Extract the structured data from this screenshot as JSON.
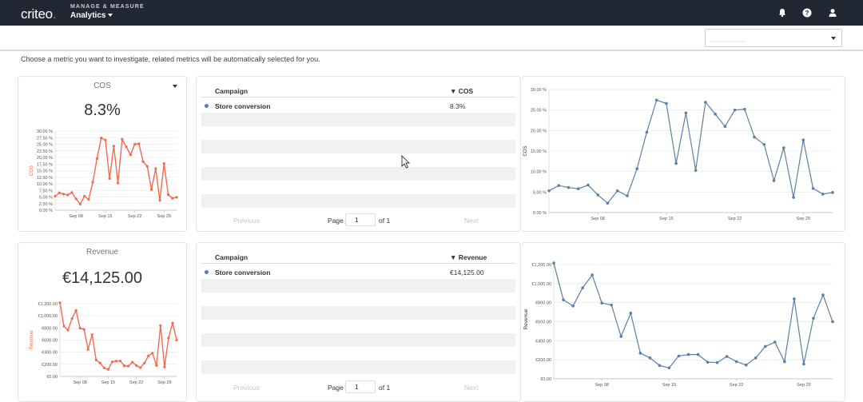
{
  "header": {
    "logo": "criteo",
    "product_sub": "MANAGE & MEASURE",
    "product_main": "Analytics",
    "icons": [
      "bell-icon",
      "help-icon",
      "user-icon"
    ]
  },
  "intro_text": "Choose a metric you want to investigate, related metrics will be automatically selected for you.",
  "colors": {
    "topbar": "#222833",
    "spark": "#f26b4f",
    "line": "#5b7fa5",
    "accent": "#f36c21"
  },
  "rows": [
    {
      "metric": {
        "name": "COS",
        "value": "8.3%"
      },
      "table": {
        "col_campaign": "Campaign",
        "col_metric": "▼ COS",
        "rows": [
          {
            "name": "Store conversion",
            "value": "8.3%"
          }
        ],
        "pager": {
          "previous": "Previous",
          "page_label": "Page",
          "page_value": "1",
          "of": "of 1",
          "next": "Next"
        }
      }
    },
    {
      "metric": {
        "name": "Revenue",
        "value": "€14,125.00"
      },
      "table": {
        "col_campaign": "Campaign",
        "col_metric": "▼ Revenue",
        "rows": [
          {
            "name": "Store conversion",
            "value": "€14,125.00"
          }
        ],
        "pager": {
          "previous": "Previous",
          "page_label": "Page",
          "page_value": "1",
          "of": "of 1",
          "next": "Next"
        }
      }
    }
  ],
  "chart_data": [
    {
      "type": "line",
      "id": "cos-spark",
      "ylabel": "COS",
      "ylim": [
        0,
        30
      ],
      "yticks": [
        "0.00 %",
        "2.50 %",
        "5.00 %",
        "7.50 %",
        "10.00 %",
        "12.50 %",
        "15.00 %",
        "17.50 %",
        "20.00 %",
        "22.50 %",
        "25.00 %",
        "27.50 %",
        "30.00 %"
      ],
      "ytick_values": [
        0,
        2.5,
        5,
        7.5,
        10,
        12.5,
        15,
        17.5,
        20,
        22.5,
        25,
        27.5,
        30
      ],
      "xticks": [
        "Sep 08",
        "Sep 15",
        "Sep 22",
        "Sep 29"
      ],
      "xtick_index": [
        5,
        12,
        19,
        26
      ],
      "values": [
        5.3,
        6.6,
        6.1,
        5.8,
        6.7,
        4.3,
        2.3,
        5.3,
        4.1,
        10.7,
        19.6,
        27.4,
        26.6,
        12.0,
        24.3,
        10.3,
        26.9,
        24.0,
        21.0,
        25.0,
        25.2,
        18.4,
        16.6,
        7.8,
        15.8,
        3.7,
        17.7,
        5.9,
        4.5,
        4.9
      ]
    },
    {
      "type": "line",
      "id": "cos-main",
      "ylabel": "COS",
      "ylim": [
        0,
        30
      ],
      "yticks": [
        "0.00 %",
        "5.00 %",
        "10.00 %",
        "15.00 %",
        "20.00 %",
        "25.00 %",
        "30.00 %"
      ],
      "ytick_values": [
        0,
        5,
        10,
        15,
        20,
        25,
        30
      ],
      "xticks": [
        "Sep 08",
        "Sep 15",
        "Sep 22",
        "Sep 29"
      ],
      "xtick_index": [
        5,
        12,
        19,
        26
      ],
      "values": [
        5.3,
        6.6,
        6.1,
        5.8,
        6.7,
        4.3,
        2.3,
        5.3,
        4.1,
        10.7,
        19.6,
        27.4,
        26.6,
        12.0,
        24.3,
        10.3,
        26.9,
        24.0,
        21.0,
        25.0,
        25.2,
        18.4,
        16.6,
        7.8,
        15.8,
        3.7,
        17.7,
        5.9,
        4.5,
        4.9
      ]
    },
    {
      "type": "line",
      "id": "rev-spark",
      "ylabel": "Revenue",
      "ylim": [
        0,
        1200
      ],
      "yticks": [
        "€0.00",
        "€200.00",
        "€400.00",
        "€600.00",
        "€800.00",
        "€1,000.00",
        "€1,200.00"
      ],
      "ytick_values": [
        0,
        200,
        400,
        600,
        800,
        1000,
        1200
      ],
      "xticks": [
        "Sep 08",
        "Sep 15",
        "Sep 22",
        "Sep 29"
      ],
      "xtick_index": [
        5,
        12,
        19,
        26
      ],
      "values": [
        1215,
        830,
        765,
        955,
        1090,
        795,
        775,
        445,
        690,
        270,
        220,
        140,
        115,
        240,
        255,
        255,
        175,
        170,
        235,
        180,
        145,
        220,
        340,
        385,
        180,
        840,
        155,
        635,
        880,
        600
      ]
    },
    {
      "type": "line",
      "id": "rev-main",
      "ylabel": "Revenue",
      "ylim": [
        0,
        1250
      ],
      "yticks": [
        "€0.00",
        "€200.00",
        "€400.00",
        "€600.00",
        "€800.00",
        "€1,000.00",
        "€1,200.00"
      ],
      "ytick_values": [
        0,
        200,
        400,
        600,
        800,
        1000,
        1200
      ],
      "xticks": [
        "Sep 08",
        "Sep 15",
        "Sep 22",
        "Sep 29"
      ],
      "xtick_index": [
        5,
        12,
        19,
        26
      ],
      "values": [
        1215,
        830,
        765,
        955,
        1090,
        795,
        775,
        445,
        690,
        270,
        220,
        140,
        115,
        240,
        255,
        255,
        175,
        170,
        235,
        180,
        145,
        220,
        340,
        385,
        180,
        840,
        155,
        635,
        880,
        600
      ]
    }
  ]
}
